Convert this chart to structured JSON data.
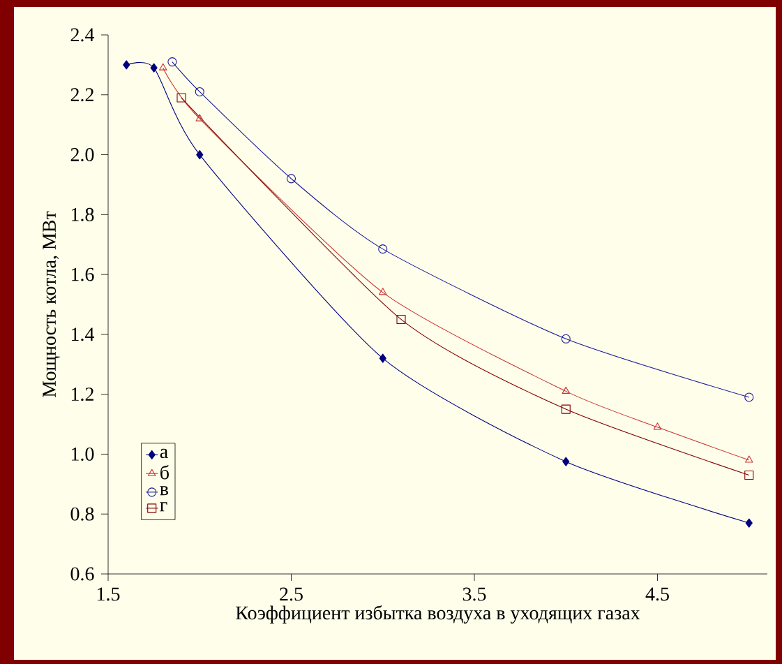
{
  "chart_data": {
    "type": "line",
    "xlabel": "Коэффициент избытка воздуха в уходящих газах",
    "ylabel": "Мощность котла, МВт",
    "xlim": [
      1.5,
      5.1
    ],
    "xticks": [
      1.5,
      2.5,
      3.5,
      4.5
    ],
    "ylim": [
      0.6,
      2.4
    ],
    "yticks": [
      0.6,
      0.8,
      {
        "value": 1.0,
        "label": "1.0"
      },
      1.2,
      1.4,
      1.6,
      1.8,
      {
        "value": 2.0,
        "label": "2.0"
      },
      2.2,
      2.4
    ],
    "grid": false,
    "legend": "bottom left",
    "line_style": "solid",
    "series": [
      {
        "name": "а",
        "color": "#000080",
        "marker": "diamond",
        "x": [
          1.6,
          1.75,
          2.0,
          3.0,
          4.0,
          5.0
        ],
        "values": [
          2.3,
          2.29,
          2.0,
          1.32,
          0.975,
          0.77
        ]
      },
      {
        "name": "б",
        "color": "#cc3333",
        "marker": "triangle",
        "x": [
          1.8,
          2.0,
          3.0,
          4.0,
          4.5,
          5.0
        ],
        "values": [
          2.29,
          2.12,
          1.54,
          1.21,
          1.09,
          0.98
        ]
      },
      {
        "name": "в",
        "color": "#1a1a99",
        "marker": "circle",
        "x": [
          1.85,
          2.0,
          2.5,
          3.0,
          4.0,
          5.0
        ],
        "values": [
          2.31,
          2.21,
          1.92,
          1.685,
          1.385,
          1.19
        ]
      },
      {
        "name": "г",
        "color": "#800000",
        "marker": "square",
        "x": [
          1.9,
          3.1,
          4.0,
          5.0
        ],
        "values": [
          2.19,
          1.45,
          1.15,
          0.93
        ]
      }
    ]
  }
}
